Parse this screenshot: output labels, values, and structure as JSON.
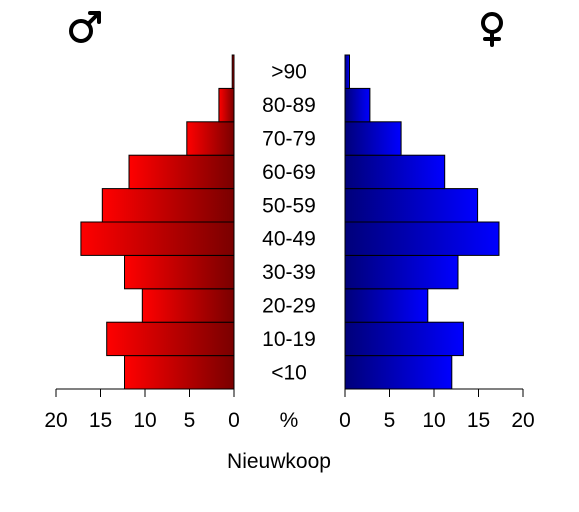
{
  "chart_data": {
    "type": "bar",
    "orientation": "horizontal-population-pyramid",
    "title": "Nieuwkoop",
    "center_label": "%",
    "categories": [
      "<10",
      "10-19",
      "20-29",
      "30-39",
      "40-49",
      "50-59",
      "60-69",
      "70-79",
      "80-89",
      ">90"
    ],
    "series": [
      {
        "name": "male",
        "side": "left",
        "values": [
          12.3,
          14.3,
          10.3,
          12.3,
          17.2,
          14.8,
          11.8,
          5.3,
          1.7,
          0.2
        ],
        "color_light": "#ff0000",
        "color_dark": "#7a0000"
      },
      {
        "name": "female",
        "side": "right",
        "values": [
          12.0,
          13.3,
          9.3,
          12.7,
          17.3,
          14.9,
          11.2,
          6.3,
          2.8,
          0.5
        ],
        "color_light": "#0000ff",
        "color_dark": "#00007a"
      }
    ],
    "xlim": [
      0,
      20
    ],
    "ticks": [
      0,
      5,
      10,
      15,
      20
    ],
    "legend_symbols": {
      "male": "male-symbol",
      "female": "female-symbol"
    }
  }
}
